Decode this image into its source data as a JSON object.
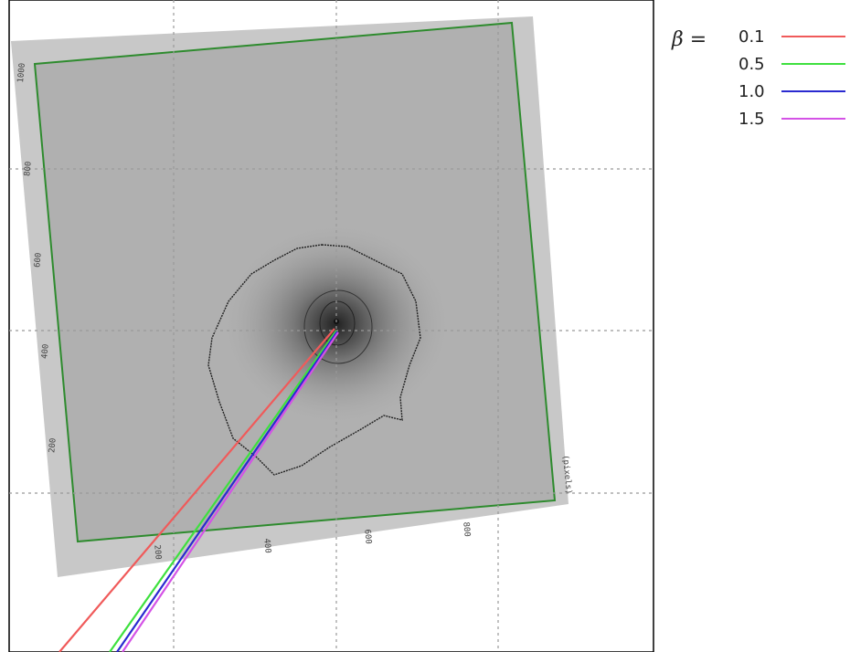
{
  "legend": {
    "label": "β =",
    "entries": [
      {
        "name": "0.1",
        "color": "#f05a5a"
      },
      {
        "name": "0.5",
        "color": "#3ee03e"
      },
      {
        "name": "1.0",
        "color": "#2a2ad0"
      },
      {
        "name": "1.5",
        "color": "#d452e6"
      }
    ]
  },
  "image_axes": {
    "left_ticks": [
      "1000",
      "800",
      "600",
      "400",
      "200"
    ],
    "bottom_ticks": [
      "200",
      "400",
      "600",
      "800"
    ],
    "unit_label": "(pixels)"
  }
}
